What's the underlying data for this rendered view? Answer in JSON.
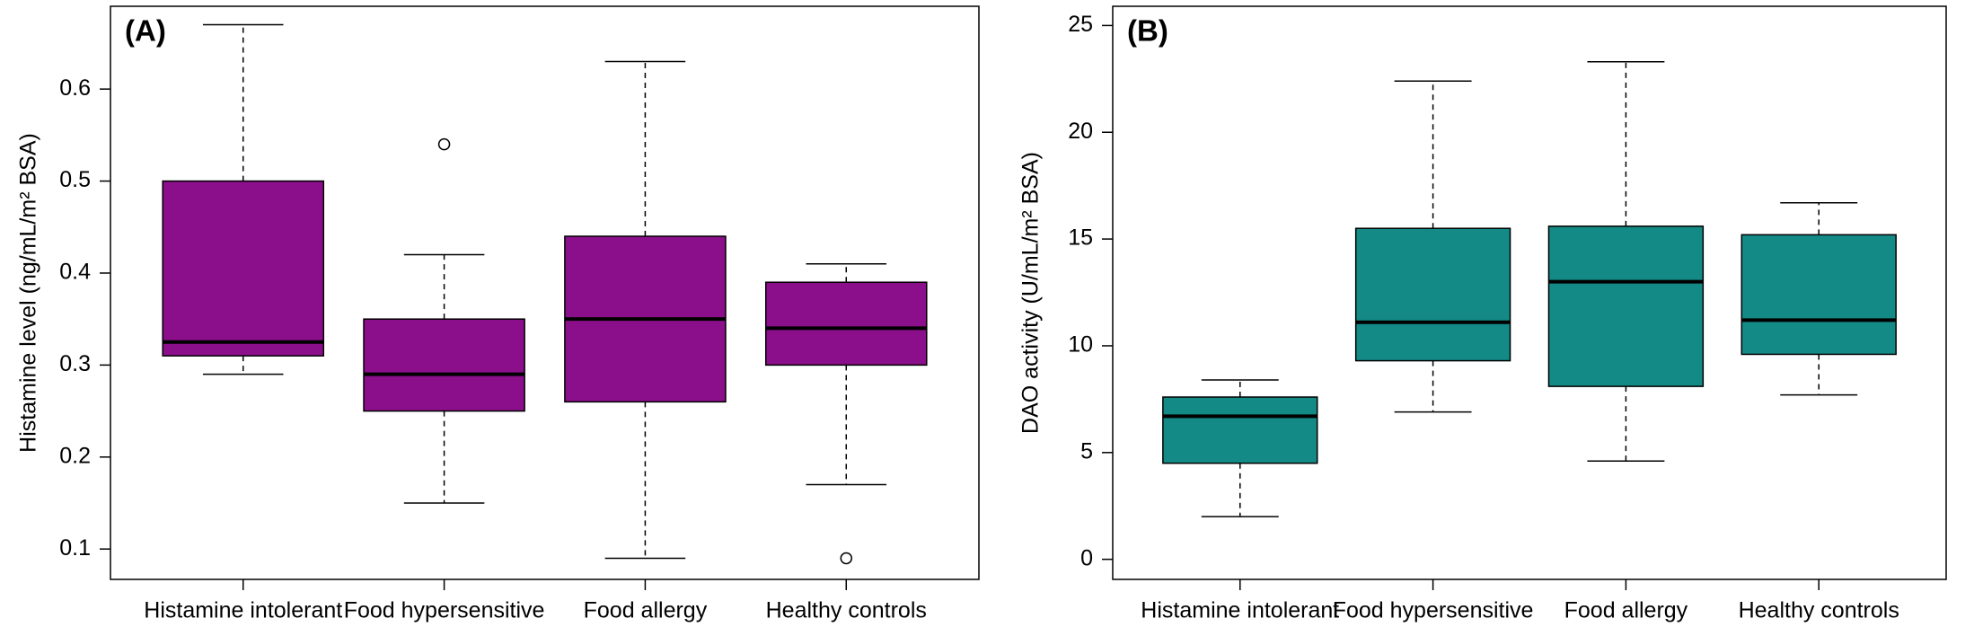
{
  "chart_data": [
    {
      "type": "box",
      "title": "(A)",
      "y_label": "Histamine level (ng/mL/m² BSA)",
      "color": "#8b0f8b",
      "categories": [
        "Histamine intolerant",
        "Food hypersensitive",
        "Food allergy",
        "Healthy controls"
      ],
      "boxes": [
        {
          "min": 0.29,
          "q1": 0.31,
          "median": 0.325,
          "q3": 0.5,
          "max": 0.67,
          "outliers": []
        },
        {
          "min": 0.15,
          "q1": 0.25,
          "median": 0.29,
          "q3": 0.35,
          "max": 0.42,
          "outliers": [
            0.54
          ]
        },
        {
          "min": 0.09,
          "q1": 0.26,
          "median": 0.35,
          "q3": 0.44,
          "max": 0.63,
          "outliers": []
        },
        {
          "min": 0.17,
          "q1": 0.3,
          "median": 0.34,
          "q3": 0.39,
          "max": 0.41,
          "outliers": [
            0.09
          ]
        }
      ],
      "ylim": [
        0.067,
        0.69
      ],
      "yticks": [
        0.1,
        0.2,
        0.3,
        0.4,
        0.5,
        0.6
      ]
    },
    {
      "type": "box",
      "title": "(B)",
      "y_label": "DAO activity (U/mL/m² BSA)",
      "color": "#138a86",
      "categories": [
        "Histamine intolerant",
        "Food hypersensitive",
        "Food allergy",
        "Healthy controls"
      ],
      "boxes": [
        {
          "min": 2.0,
          "q1": 4.5,
          "median": 6.7,
          "q3": 7.6,
          "max": 8.4,
          "outliers": []
        },
        {
          "min": 6.9,
          "q1": 9.3,
          "median": 11.1,
          "q3": 15.5,
          "max": 22.4,
          "outliers": []
        },
        {
          "min": 4.6,
          "q1": 8.1,
          "median": 13.0,
          "q3": 15.6,
          "max": 23.3,
          "outliers": []
        },
        {
          "min": 7.7,
          "q1": 9.6,
          "median": 11.2,
          "q3": 15.2,
          "max": 16.7,
          "outliers": []
        }
      ],
      "ylim": [
        -0.94,
        25.9
      ],
      "yticks": [
        0,
        5,
        10,
        15,
        20,
        25
      ]
    }
  ]
}
